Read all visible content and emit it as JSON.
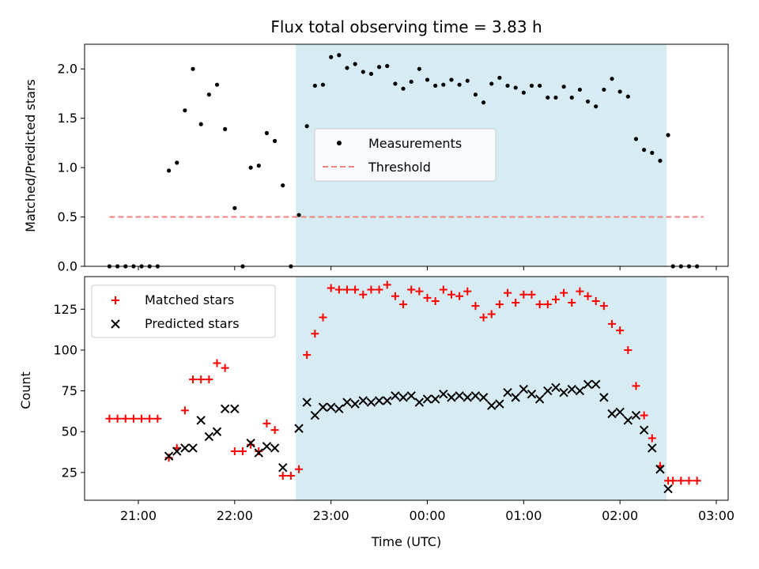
{
  "title": "Flux total observing time = 3.83 h",
  "chart_data": [
    {
      "type": "scatter",
      "ylabel": "Matched/Predicted stars",
      "ylim": [
        0,
        2.25
      ],
      "yticks": [
        0.0,
        0.5,
        1.0,
        1.5,
        2.0
      ],
      "ytick_labels": [
        "0.0",
        "0.5",
        "1.0",
        "1.5",
        "2.0"
      ],
      "highlight_span": [
        "22:38",
        "02:29"
      ],
      "highlight_color": "#add8e6",
      "legend_location": "center",
      "series": [
        {
          "name": "Measurements",
          "kind": "dot",
          "color": "#000000",
          "points": [
            [
              "20:42",
              0
            ],
            [
              "20:47",
              0
            ],
            [
              "20:52",
              0
            ],
            [
              "20:57",
              0
            ],
            [
              "21:02",
              0
            ],
            [
              "21:07",
              0
            ],
            [
              "21:12",
              0
            ],
            [
              "21:19",
              0.97
            ],
            [
              "21:24",
              1.05
            ],
            [
              "21:29",
              1.58
            ],
            [
              "21:34",
              2.0
            ],
            [
              "21:39",
              1.44
            ],
            [
              "21:44",
              1.74
            ],
            [
              "21:49",
              1.84
            ],
            [
              "21:54",
              1.39
            ],
            [
              "22:00",
              0.59
            ],
            [
              "22:05",
              0
            ],
            [
              "22:10",
              1.0
            ],
            [
              "22:15",
              1.02
            ],
            [
              "22:20",
              1.35
            ],
            [
              "22:25",
              1.27
            ],
            [
              "22:30",
              0.82
            ],
            [
              "22:35",
              0
            ],
            [
              "22:40",
              0.52
            ],
            [
              "22:45",
              1.42
            ],
            [
              "22:50",
              1.83
            ],
            [
              "22:55",
              1.84
            ],
            [
              "23:00",
              2.12
            ],
            [
              "23:05",
              2.14
            ],
            [
              "23:10",
              2.01
            ],
            [
              "23:15",
              2.05
            ],
            [
              "23:20",
              1.97
            ],
            [
              "23:25",
              1.95
            ],
            [
              "23:30",
              2.02
            ],
            [
              "23:35",
              2.03
            ],
            [
              "23:40",
              1.85
            ],
            [
              "23:45",
              1.8
            ],
            [
              "23:50",
              1.87
            ],
            [
              "23:55",
              2.0
            ],
            [
              "00:00",
              1.89
            ],
            [
              "00:05",
              1.83
            ],
            [
              "00:10",
              1.84
            ],
            [
              "00:15",
              1.89
            ],
            [
              "00:20",
              1.84
            ],
            [
              "00:25",
              1.88
            ],
            [
              "00:30",
              1.74
            ],
            [
              "00:35",
              1.66
            ],
            [
              "00:40",
              1.85
            ],
            [
              "00:45",
              1.91
            ],
            [
              "00:50",
              1.83
            ],
            [
              "00:55",
              1.81
            ],
            [
              "01:00",
              1.76
            ],
            [
              "01:05",
              1.83
            ],
            [
              "01:10",
              1.83
            ],
            [
              "01:15",
              1.71
            ],
            [
              "01:20",
              1.71
            ],
            [
              "01:25",
              1.82
            ],
            [
              "01:30",
              1.71
            ],
            [
              "01:35",
              1.79
            ],
            [
              "01:40",
              1.67
            ],
            [
              "01:45",
              1.62
            ],
            [
              "01:50",
              1.79
            ],
            [
              "01:55",
              1.9
            ],
            [
              "02:00",
              1.77
            ],
            [
              "02:05",
              1.72
            ],
            [
              "02:10",
              1.29
            ],
            [
              "02:15",
              1.18
            ],
            [
              "02:20",
              1.15
            ],
            [
              "02:25",
              1.07
            ],
            [
              "02:30",
              1.33
            ],
            [
              "02:33",
              0
            ],
            [
              "02:38",
              0
            ],
            [
              "02:43",
              0
            ],
            [
              "02:48",
              0
            ]
          ]
        },
        {
          "name": "Threshold",
          "kind": "dashed-line",
          "color": "#f08080",
          "points": [
            [
              "20:42",
              0.5
            ],
            [
              "02:52",
              0.5
            ]
          ]
        }
      ]
    },
    {
      "type": "scatter",
      "ylabel": "Count",
      "xlabel": "Time (UTC)",
      "ylim": [
        8,
        145
      ],
      "yticks": [
        25,
        50,
        75,
        100,
        125
      ],
      "ytick_labels": [
        "25",
        "50",
        "75",
        "100",
        "125"
      ],
      "xticks": [
        "21:00",
        "22:00",
        "23:00",
        "00:00",
        "01:00",
        "02:00",
        "03:00"
      ],
      "highlight_span": [
        "22:38",
        "02:29"
      ],
      "highlight_color": "#add8e6",
      "legend_location": "upper left",
      "series": [
        {
          "name": "Matched stars",
          "kind": "plus",
          "color": "#ff0000",
          "points": [
            [
              "20:42",
              58
            ],
            [
              "20:47",
              58
            ],
            [
              "20:52",
              58
            ],
            [
              "20:57",
              58
            ],
            [
              "21:02",
              58
            ],
            [
              "21:07",
              58
            ],
            [
              "21:12",
              58
            ],
            [
              "21:19",
              34
            ],
            [
              "21:24",
              40
            ],
            [
              "21:29",
              63
            ],
            [
              "21:34",
              82
            ],
            [
              "21:39",
              82
            ],
            [
              "21:44",
              82
            ],
            [
              "21:49",
              92
            ],
            [
              "21:54",
              89
            ],
            [
              "22:00",
              38
            ],
            [
              "22:05",
              38
            ],
            [
              "22:10",
              42
            ],
            [
              "22:15",
              38
            ],
            [
              "22:20",
              55
            ],
            [
              "22:25",
              51
            ],
            [
              "22:30",
              23
            ],
            [
              "22:35",
              23
            ],
            [
              "22:40",
              27
            ],
            [
              "22:45",
              97
            ],
            [
              "22:50",
              110
            ],
            [
              "22:55",
              120
            ],
            [
              "23:00",
              138
            ],
            [
              "23:05",
              137
            ],
            [
              "23:10",
              137
            ],
            [
              "23:15",
              137
            ],
            [
              "23:20",
              134
            ],
            [
              "23:25",
              137
            ],
            [
              "23:30",
              137
            ],
            [
              "23:35",
              140
            ],
            [
              "23:40",
              133
            ],
            [
              "23:45",
              128
            ],
            [
              "23:50",
              137
            ],
            [
              "23:55",
              136
            ],
            [
              "00:00",
              132
            ],
            [
              "00:05",
              130
            ],
            [
              "00:10",
              137
            ],
            [
              "00:15",
              134
            ],
            [
              "00:20",
              133
            ],
            [
              "00:25",
              136
            ],
            [
              "00:30",
              127
            ],
            [
              "00:35",
              120
            ],
            [
              "00:40",
              122
            ],
            [
              "00:45",
              128
            ],
            [
              "00:50",
              135
            ],
            [
              "00:55",
              129
            ],
            [
              "01:00",
              134
            ],
            [
              "01:05",
              134
            ],
            [
              "01:10",
              128
            ],
            [
              "01:15",
              128
            ],
            [
              "01:20",
              131
            ],
            [
              "01:25",
              135
            ],
            [
              "01:30",
              129
            ],
            [
              "01:35",
              136
            ],
            [
              "01:40",
              133
            ],
            [
              "01:45",
              130
            ],
            [
              "01:50",
              127
            ],
            [
              "01:55",
              116
            ],
            [
              "02:00",
              112
            ],
            [
              "02:05",
              100
            ],
            [
              "02:10",
              78
            ],
            [
              "02:15",
              60
            ],
            [
              "02:20",
              46
            ],
            [
              "02:25",
              29
            ],
            [
              "02:30",
              20
            ],
            [
              "02:33",
              20
            ],
            [
              "02:38",
              20
            ],
            [
              "02:43",
              20
            ],
            [
              "02:48",
              20
            ]
          ]
        },
        {
          "name": "Predicted stars",
          "kind": "x",
          "color": "#000000",
          "points": [
            [
              "21:19",
              35
            ],
            [
              "21:24",
              38
            ],
            [
              "21:29",
              40
            ],
            [
              "21:34",
              40
            ],
            [
              "21:39",
              57
            ],
            [
              "21:44",
              47
            ],
            [
              "21:49",
              50
            ],
            [
              "21:54",
              64
            ],
            [
              "22:00",
              64
            ],
            [
              "22:10",
              43
            ],
            [
              "22:15",
              37
            ],
            [
              "22:20",
              41
            ],
            [
              "22:25",
              40
            ],
            [
              "22:30",
              28
            ],
            [
              "22:40",
              52
            ],
            [
              "22:45",
              68
            ],
            [
              "22:50",
              60
            ],
            [
              "22:55",
              65
            ],
            [
              "23:00",
              65
            ],
            [
              "23:05",
              64
            ],
            [
              "23:10",
              68
            ],
            [
              "23:15",
              67
            ],
            [
              "23:20",
              69
            ],
            [
              "23:25",
              68
            ],
            [
              "23:30",
              69
            ],
            [
              "23:35",
              69
            ],
            [
              "23:40",
              72
            ],
            [
              "23:45",
              71
            ],
            [
              "23:50",
              72
            ],
            [
              "23:55",
              68
            ],
            [
              "00:00",
              70
            ],
            [
              "00:05",
              70
            ],
            [
              "00:10",
              73
            ],
            [
              "00:15",
              71
            ],
            [
              "00:20",
              72
            ],
            [
              "00:25",
              71
            ],
            [
              "00:30",
              72
            ],
            [
              "00:35",
              71
            ],
            [
              "00:40",
              66
            ],
            [
              "00:45",
              67
            ],
            [
              "00:50",
              74
            ],
            [
              "00:55",
              71
            ],
            [
              "01:00",
              76
            ],
            [
              "01:05",
              73
            ],
            [
              "01:10",
              70
            ],
            [
              "01:15",
              75
            ],
            [
              "01:20",
              77
            ],
            [
              "01:25",
              74
            ],
            [
              "01:30",
              76
            ],
            [
              "01:35",
              75
            ],
            [
              "01:40",
              79
            ],
            [
              "01:45",
              79
            ],
            [
              "01:50",
              71
            ],
            [
              "01:55",
              61
            ],
            [
              "02:00",
              62
            ],
            [
              "02:05",
              57
            ],
            [
              "02:10",
              60
            ],
            [
              "02:15",
              51
            ],
            [
              "02:20",
              40
            ],
            [
              "02:25",
              27
            ],
            [
              "02:30",
              15
            ]
          ]
        }
      ]
    }
  ]
}
